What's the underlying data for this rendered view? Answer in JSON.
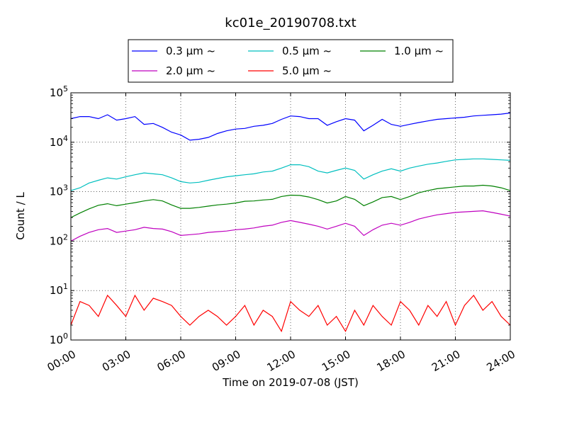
{
  "chart_data": {
    "type": "line",
    "title": "kc01e_20190708.txt",
    "xlabel": "Time on 2019-07-08 (JST)",
    "ylabel": "Count / L",
    "y_scale": "log",
    "ylim": [
      1,
      100000
    ],
    "xlim": [
      "00:00",
      "24:00"
    ],
    "x_ticks": [
      "00:00",
      "03:00",
      "06:00",
      "09:00",
      "12:00",
      "15:00",
      "18:00",
      "21:00",
      "24:00"
    ],
    "y_ticks": [
      {
        "base": "10",
        "exp": "0"
      },
      {
        "base": "10",
        "exp": "1"
      },
      {
        "base": "10",
        "exp": "2"
      },
      {
        "base": "10",
        "exp": "3"
      },
      {
        "base": "10",
        "exp": "4"
      },
      {
        "base": "10",
        "exp": "5"
      }
    ],
    "grid": true,
    "legend_position": "top-center",
    "legend_suffix": "~",
    "x": [
      "00:00",
      "00:30",
      "01:00",
      "01:30",
      "02:00",
      "02:30",
      "03:00",
      "03:30",
      "04:00",
      "04:30",
      "05:00",
      "05:30",
      "06:00",
      "06:30",
      "07:00",
      "07:30",
      "08:00",
      "08:30",
      "09:00",
      "09:30",
      "10:00",
      "10:30",
      "11:00",
      "11:30",
      "12:00",
      "12:30",
      "13:00",
      "13:30",
      "14:00",
      "14:30",
      "15:00",
      "15:30",
      "16:00",
      "16:30",
      "17:00",
      "17:30",
      "18:00",
      "18:30",
      "19:00",
      "19:30",
      "20:00",
      "20:30",
      "21:00",
      "21:30",
      "22:00",
      "22:30",
      "23:00",
      "23:30",
      "24:00"
    ],
    "series": [
      {
        "name": "0.3 μm",
        "color": "#0000ff",
        "values": [
          30000,
          33000,
          33000,
          30000,
          36000,
          28000,
          30000,
          33000,
          23000,
          24000,
          20000,
          16000,
          14000,
          11000,
          11500,
          12500,
          15000,
          17000,
          18500,
          19000,
          21000,
          22000,
          24000,
          29000,
          34000,
          33000,
          30000,
          30000,
          22000,
          26000,
          30000,
          28000,
          17000,
          22000,
          29000,
          23000,
          21000,
          23000,
          25000,
          27000,
          29000,
          30000,
          31000,
          32000,
          34000,
          35000,
          36000,
          37000,
          39000
        ]
      },
      {
        "name": "0.5 μm",
        "color": "#00bfbf",
        "values": [
          1050,
          1200,
          1500,
          1700,
          1900,
          1800,
          2000,
          2200,
          2400,
          2300,
          2200,
          1900,
          1600,
          1500,
          1550,
          1700,
          1850,
          2000,
          2100,
          2200,
          2300,
          2500,
          2600,
          3000,
          3500,
          3500,
          3200,
          2600,
          2400,
          2700,
          3000,
          2700,
          1800,
          2200,
          2600,
          2900,
          2600,
          3000,
          3300,
          3600,
          3800,
          4100,
          4400,
          4500,
          4600,
          4600,
          4500,
          4400,
          4300
        ]
      },
      {
        "name": "1.0 μm",
        "color": "#008000",
        "values": [
          300,
          370,
          450,
          530,
          570,
          520,
          560,
          600,
          650,
          690,
          650,
          540,
          460,
          460,
          480,
          510,
          540,
          560,
          590,
          640,
          650,
          680,
          700,
          800,
          850,
          840,
          780,
          690,
          590,
          650,
          800,
          700,
          520,
          620,
          760,
          800,
          690,
          800,
          950,
          1050,
          1150,
          1200,
          1250,
          1300,
          1300,
          1350,
          1300,
          1200,
          1050
        ]
      },
      {
        "name": "2.0 μm",
        "color": "#bf00bf",
        "values": [
          100,
          125,
          150,
          170,
          180,
          150,
          160,
          170,
          190,
          180,
          175,
          155,
          130,
          135,
          140,
          150,
          155,
          160,
          170,
          175,
          185,
          200,
          210,
          240,
          260,
          240,
          220,
          200,
          175,
          200,
          230,
          200,
          130,
          170,
          210,
          230,
          210,
          240,
          280,
          310,
          340,
          360,
          380,
          390,
          400,
          410,
          380,
          350,
          320
        ]
      },
      {
        "name": "5.0 μm",
        "color": "#ff0000",
        "values": [
          2,
          6,
          5,
          3,
          8,
          5,
          3,
          8,
          4,
          7,
          6,
          5,
          3,
          2,
          3,
          4,
          3,
          2,
          3,
          5,
          2,
          4,
          3,
          1.5,
          6,
          4,
          3,
          5,
          2,
          3,
          1.5,
          4,
          2,
          5,
          3,
          2,
          6,
          4,
          2,
          5,
          3,
          6,
          2,
          5,
          8,
          4,
          6,
          3,
          2
        ]
      }
    ]
  }
}
